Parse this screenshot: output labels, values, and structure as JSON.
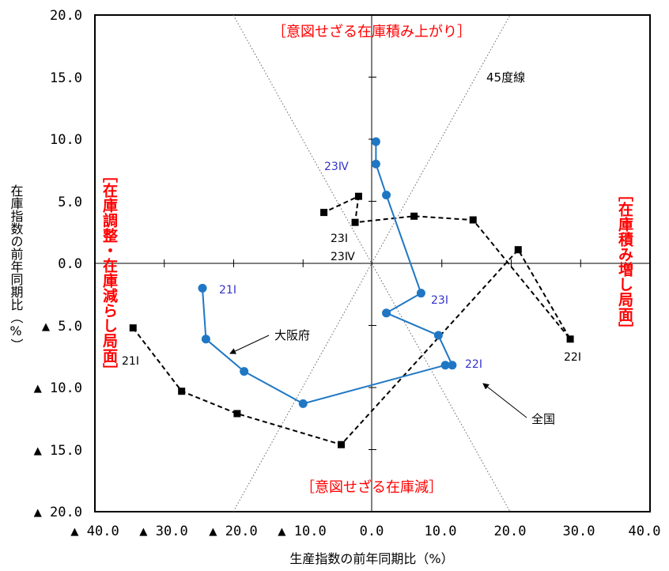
{
  "chart_data": {
    "type": "line",
    "xlabel": "生産指数の前年同期比（%）",
    "ylabel": "在庫指数の前年同期比（%）",
    "xlim": [
      -40,
      40
    ],
    "ylim": [
      -20,
      20
    ],
    "x_ticks": [
      "▲ 40.0",
      "▲ 30.0",
      "▲ 20.0",
      "▲ 10.0",
      "0.0",
      "10.0",
      "20.0",
      "30.0",
      "40.0"
    ],
    "y_ticks": [
      "20.0",
      "15.0",
      "10.0",
      "5.0",
      "0.0",
      "▲ 5.0",
      "▲ 10.0",
      "▲ 15.0",
      "▲ 20.0"
    ],
    "series": [
      {
        "name": "全国",
        "color": "#000000",
        "marker": "square",
        "line_style": "dashed",
        "x": [
          -34.5,
          -27.5,
          -19.5,
          -4.5,
          21.0,
          28.5,
          14.5,
          6.0,
          -2.5,
          -2.0,
          -7.0
        ],
        "y": [
          -5.2,
          -10.3,
          -12.1,
          -14.6,
          1.1,
          -6.1,
          3.5,
          3.8,
          3.3,
          5.4,
          4.1
        ]
      },
      {
        "name": "大阪府",
        "color": "#1f77c4",
        "marker": "circle",
        "line_style": "solid",
        "x": [
          -24.5,
          -24.0,
          -18.5,
          -10.0,
          10.5,
          11.5,
          9.5,
          2.0,
          7.0,
          2.0,
          0.5,
          0.5
        ],
        "y": [
          -2.0,
          -6.1,
          -8.7,
          -11.3,
          -8.2,
          -8.2,
          -5.8,
          -4.0,
          -2.4,
          5.5,
          8.0,
          9.8
        ]
      }
    ],
    "annotations": {
      "quadrant_top": "［意図せざる在庫積み上がり］",
      "quadrant_bottom": "［意図せざる在庫減］",
      "quadrant_left": "［在庫調整・在庫減らし局面］",
      "quadrant_right": "［在庫積み増し局面］",
      "line_45": "45度線",
      "series_label_national": "全国",
      "series_label_osaka": "大阪府",
      "national_21I": "21Ⅰ",
      "national_22I": "22Ⅰ",
      "national_23I": "23Ⅰ",
      "national_23IV": "23Ⅳ",
      "osaka_21I": "21Ⅰ",
      "osaka_22I": "22Ⅰ",
      "osaka_23I": "23Ⅰ",
      "osaka_23IV": "23Ⅳ"
    },
    "colors": {
      "quadrant_text": "#ff0000",
      "osaka_label": "#3333cc",
      "guide_lines": "#666666"
    }
  }
}
